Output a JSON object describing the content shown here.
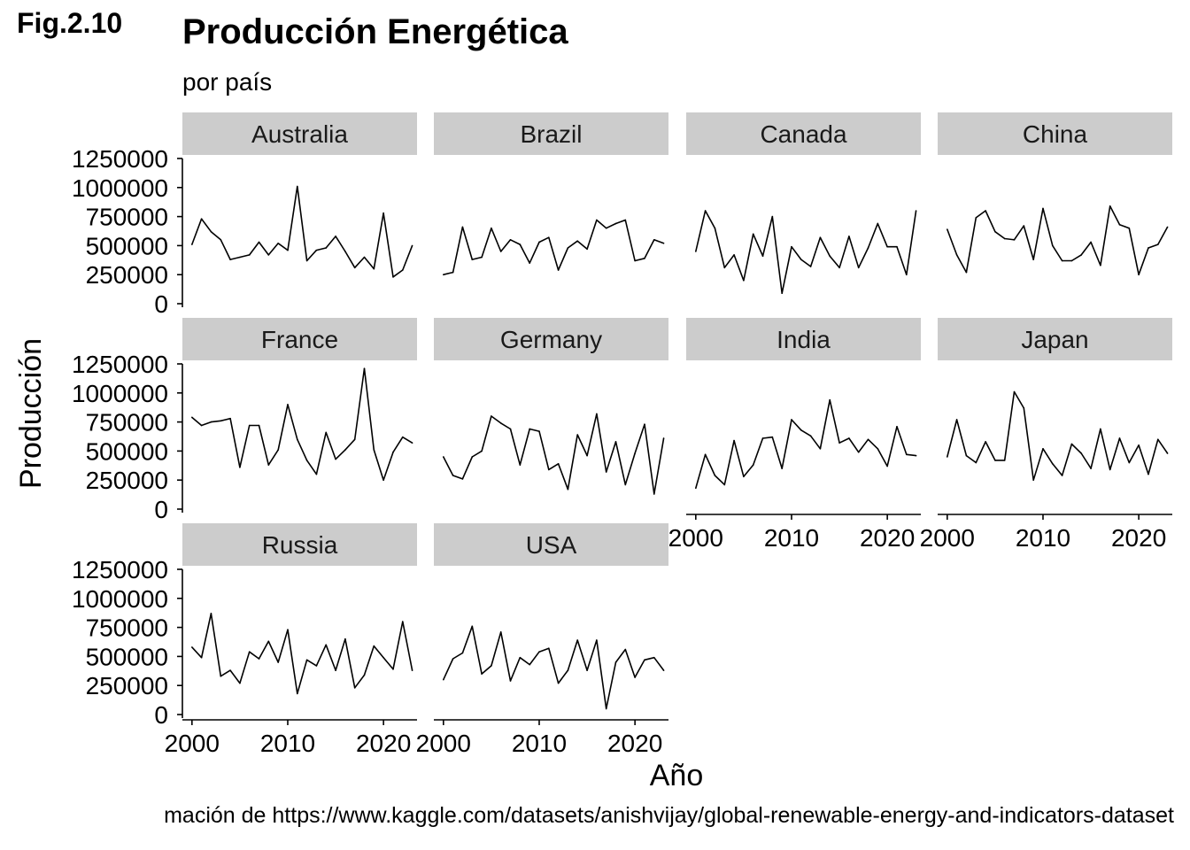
{
  "figure_tag": "Fig.2.10",
  "caption": "mación de https://www.kaggle.com/datasets/anishvijay/global-renewable-energy-and-indicators-dataset",
  "chart_data": {
    "type": "line",
    "title": "Producción Energética",
    "subtitle": "por país",
    "xlabel": "Año",
    "ylabel": "Producción",
    "x": [
      2000,
      2001,
      2002,
      2003,
      2004,
      2005,
      2006,
      2007,
      2008,
      2009,
      2010,
      2011,
      2012,
      2013,
      2014,
      2015,
      2016,
      2017,
      2018,
      2019,
      2020,
      2021,
      2022,
      2023
    ],
    "xlim": [
      1999,
      2023.5
    ],
    "ylim": [
      0,
      1250000
    ],
    "x_ticks": [
      2000,
      2010,
      2020
    ],
    "y_ticks": [
      0,
      250000,
      500000,
      750000,
      1000000,
      1250000
    ],
    "grid": false,
    "facets": [
      {
        "name": "Australia",
        "values": [
          510000,
          730000,
          620000,
          550000,
          380000,
          400000,
          420000,
          530000,
          420000,
          520000,
          460000,
          1010000,
          370000,
          460000,
          480000,
          580000,
          450000,
          310000,
          400000,
          300000,
          780000,
          230000,
          290000,
          500000
        ]
      },
      {
        "name": "Brazil",
        "values": [
          250000,
          270000,
          660000,
          380000,
          400000,
          650000,
          450000,
          550000,
          510000,
          350000,
          530000,
          570000,
          290000,
          480000,
          540000,
          470000,
          720000,
          650000,
          690000,
          720000,
          370000,
          390000,
          550000,
          520000
        ]
      },
      {
        "name": "Canada",
        "values": [
          450000,
          800000,
          650000,
          310000,
          420000,
          200000,
          600000,
          410000,
          750000,
          90000,
          490000,
          380000,
          320000,
          570000,
          410000,
          310000,
          580000,
          310000,
          480000,
          690000,
          490000,
          490000,
          250000,
          800000
        ]
      },
      {
        "name": "China",
        "values": [
          640000,
          420000,
          270000,
          740000,
          800000,
          620000,
          560000,
          550000,
          670000,
          380000,
          820000,
          500000,
          370000,
          370000,
          420000,
          530000,
          330000,
          840000,
          680000,
          650000,
          250000,
          480000,
          510000,
          660000
        ]
      },
      {
        "name": "France",
        "values": [
          790000,
          720000,
          750000,
          760000,
          780000,
          360000,
          720000,
          720000,
          380000,
          510000,
          900000,
          600000,
          420000,
          300000,
          660000,
          430000,
          510000,
          600000,
          1210000,
          510000,
          250000,
          490000,
          620000,
          570000
        ]
      },
      {
        "name": "Germany",
        "values": [
          450000,
          290000,
          260000,
          450000,
          500000,
          800000,
          740000,
          690000,
          380000,
          690000,
          670000,
          340000,
          390000,
          170000,
          640000,
          460000,
          820000,
          320000,
          580000,
          210000,
          480000,
          730000,
          130000,
          610000
        ]
      },
      {
        "name": "India",
        "values": [
          180000,
          470000,
          290000,
          210000,
          590000,
          280000,
          380000,
          610000,
          620000,
          350000,
          770000,
          680000,
          630000,
          520000,
          940000,
          570000,
          610000,
          490000,
          600000,
          520000,
          370000,
          710000,
          470000,
          460000
        ]
      },
      {
        "name": "Japan",
        "values": [
          450000,
          770000,
          460000,
          400000,
          580000,
          420000,
          420000,
          1010000,
          870000,
          250000,
          520000,
          390000,
          290000,
          560000,
          480000,
          350000,
          690000,
          340000,
          610000,
          400000,
          550000,
          300000,
          600000,
          480000
        ]
      },
      {
        "name": "Russia",
        "values": [
          580000,
          490000,
          870000,
          330000,
          380000,
          270000,
          540000,
          480000,
          630000,
          450000,
          730000,
          180000,
          470000,
          420000,
          600000,
          380000,
          650000,
          230000,
          340000,
          590000,
          490000,
          390000,
          800000,
          380000
        ]
      },
      {
        "name": "USA",
        "values": [
          300000,
          480000,
          530000,
          760000,
          350000,
          420000,
          710000,
          290000,
          490000,
          430000,
          540000,
          570000,
          270000,
          380000,
          640000,
          380000,
          640000,
          50000,
          450000,
          560000,
          320000,
          470000,
          490000,
          380000
        ]
      }
    ]
  }
}
